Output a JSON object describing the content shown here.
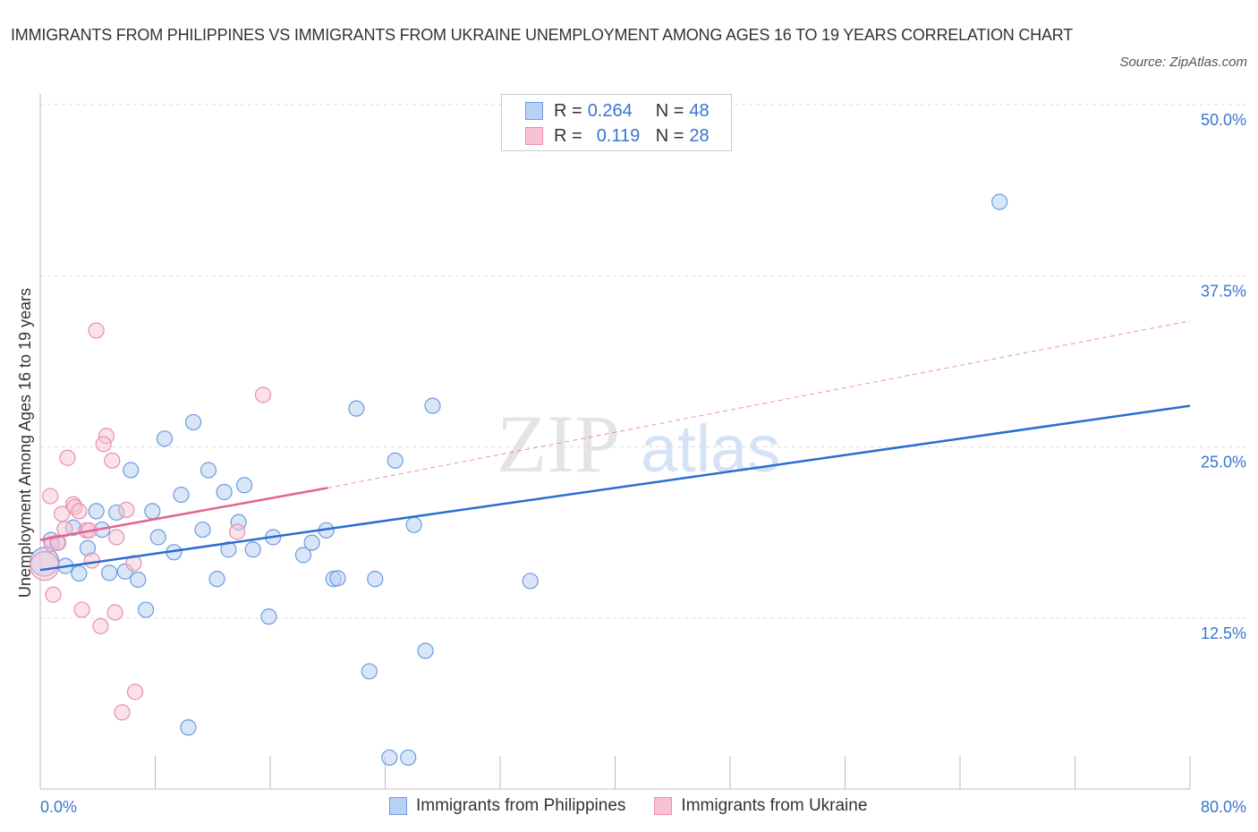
{
  "title": "IMMIGRANTS FROM PHILIPPINES VS IMMIGRANTS FROM UKRAINE UNEMPLOYMENT AMONG AGES 16 TO 19 YEARS CORRELATION CHART",
  "source": "Source: ZipAtlas.com",
  "watermark": "ZIPatlas",
  "legend": {
    "rows": [
      {
        "r_label": "R = ",
        "r_value": "0.264",
        "n_label": "N = ",
        "n_value": "48"
      },
      {
        "r_label": "R = ",
        "r_value": "0.119",
        "n_label": "N = ",
        "n_value": "28"
      }
    ]
  },
  "colors": {
    "philippines": "#3a74d0",
    "philippines_fill": "#b9d1f3",
    "ukraine": "#e4638e",
    "ukraine_fill": "#f7c3d3"
  },
  "chart_data": {
    "type": "scatter",
    "title": "IMMIGRANTS FROM PHILIPPINES VS IMMIGRANTS FROM UKRAINE UNEMPLOYMENT AMONG AGES 16 TO 19 YEARS CORRELATION CHART",
    "xlabel": "",
    "ylabel": "Unemployment Among Ages 16 to 19 years",
    "xlim": [
      0,
      80
    ],
    "ylim": [
      0,
      50
    ],
    "x_tick_labels": [
      "0.0%",
      "80.0%"
    ],
    "x_ticks": [
      0,
      8,
      16,
      24,
      32,
      40,
      48,
      56,
      64,
      72,
      80
    ],
    "y_ticks": [
      12.5,
      25,
      37.5,
      50
    ],
    "y_tick_labels": [
      "12.5%",
      "25.0%",
      "37.5%",
      "50.0%"
    ],
    "grid": true,
    "legend_position": "bottom-center",
    "series": [
      {
        "name": "Immigrants from Philippines",
        "trend": {
          "x": [
            0,
            80
          ],
          "y": [
            16.0,
            28.0
          ]
        },
        "points": [
          [
            66.75,
            42.9
          ],
          [
            27.3,
            28.0
          ],
          [
            22.0,
            27.8
          ],
          [
            10.65,
            26.8
          ],
          [
            8.65,
            25.6
          ],
          [
            24.7,
            24.0
          ],
          [
            6.3,
            23.3
          ],
          [
            11.7,
            23.3
          ],
          [
            14.2,
            22.2
          ],
          [
            12.8,
            21.7
          ],
          [
            9.8,
            21.5
          ],
          [
            3.9,
            20.3
          ],
          [
            5.3,
            20.2
          ],
          [
            7.8,
            20.3
          ],
          [
            13.8,
            19.5
          ],
          [
            2.3,
            19.1
          ],
          [
            4.3,
            18.95
          ],
          [
            11.3,
            18.95
          ],
          [
            26.0,
            19.3
          ],
          [
            19.9,
            18.9
          ],
          [
            8.2,
            18.4
          ],
          [
            16.2,
            18.4
          ],
          [
            18.9,
            18.0
          ],
          [
            0.75,
            18.2
          ],
          [
            1.2,
            18.0
          ],
          [
            3.3,
            17.6
          ],
          [
            9.3,
            17.3
          ],
          [
            13.1,
            17.5
          ],
          [
            14.8,
            17.5
          ],
          [
            18.3,
            17.1
          ],
          [
            1.75,
            16.3
          ],
          [
            2.7,
            15.75
          ],
          [
            4.8,
            15.8
          ],
          [
            5.9,
            15.9
          ],
          [
            6.8,
            15.3
          ],
          [
            12.3,
            15.35
          ],
          [
            20.4,
            15.35
          ],
          [
            20.7,
            15.4
          ],
          [
            23.3,
            15.35
          ],
          [
            34.1,
            15.2
          ],
          [
            7.35,
            13.1
          ],
          [
            15.9,
            12.6
          ],
          [
            26.8,
            10.1
          ],
          [
            22.9,
            8.6
          ],
          [
            10.3,
            4.5
          ],
          [
            24.3,
            2.3
          ],
          [
            25.6,
            2.3
          ],
          [
            0.3,
            16.6
          ]
        ]
      },
      {
        "name": "Immigrants from Ukraine",
        "trend": {
          "x": [
            0,
            20
          ],
          "y": [
            18.2,
            22.0
          ],
          "dashed_to": {
            "x": 80,
            "y": 34.2
          }
        },
        "points": [
          [
            3.9,
            33.5
          ],
          [
            15.5,
            28.8
          ],
          [
            4.6,
            25.8
          ],
          [
            4.4,
            25.2
          ],
          [
            1.9,
            24.2
          ],
          [
            5.0,
            24.0
          ],
          [
            0.7,
            21.4
          ],
          [
            2.3,
            20.8
          ],
          [
            2.4,
            20.6
          ],
          [
            2.7,
            20.3
          ],
          [
            1.5,
            20.1
          ],
          [
            6.0,
            20.4
          ],
          [
            1.7,
            19.0
          ],
          [
            3.2,
            18.9
          ],
          [
            3.4,
            18.9
          ],
          [
            5.3,
            18.4
          ],
          [
            13.7,
            18.8
          ],
          [
            0.8,
            17.9
          ],
          [
            1.25,
            18.0
          ],
          [
            3.6,
            16.7
          ],
          [
            6.5,
            16.5
          ],
          [
            0.3,
            16.3
          ],
          [
            0.9,
            14.2
          ],
          [
            2.9,
            13.1
          ],
          [
            5.2,
            12.9
          ],
          [
            4.2,
            11.9
          ],
          [
            6.6,
            7.1
          ],
          [
            5.7,
            5.6
          ]
        ]
      }
    ]
  }
}
